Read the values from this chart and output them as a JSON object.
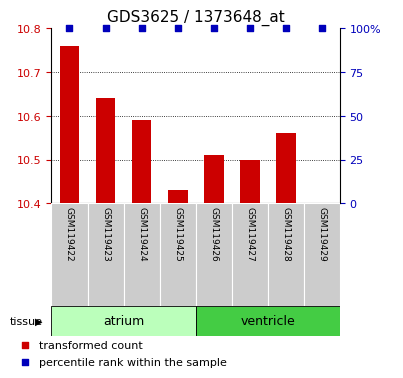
{
  "title": "GDS3625 / 1373648_at",
  "samples": [
    "GSM119422",
    "GSM119423",
    "GSM119424",
    "GSM119425",
    "GSM119426",
    "GSM119427",
    "GSM119428",
    "GSM119429"
  ],
  "red_values": [
    10.76,
    10.64,
    10.59,
    10.43,
    10.51,
    10.5,
    10.56,
    10.4
  ],
  "blue_pct": [
    100,
    100,
    100,
    100,
    100,
    100,
    100,
    100
  ],
  "ymin": 10.4,
  "ymax": 10.8,
  "yticks_left": [
    10.4,
    10.5,
    10.6,
    10.7,
    10.8
  ],
  "yticks_right": [
    0,
    25,
    50,
    75,
    100
  ],
  "ytick_right_labels": [
    "0",
    "25",
    "50",
    "75",
    "100%"
  ],
  "groups": [
    {
      "label": "atrium",
      "start": 0,
      "end": 4,
      "color": "#bbffbb"
    },
    {
      "label": "ventricle",
      "start": 4,
      "end": 8,
      "color": "#44cc44"
    }
  ],
  "bar_color": "#cc0000",
  "dot_color": "#0000bb",
  "left_tick_color": "#cc0000",
  "right_tick_color": "#0000bb",
  "grid_color": "#000000",
  "sample_box_color": "#cccccc",
  "title_fontsize": 11,
  "axis_fontsize": 8,
  "sample_fontsize": 6.5,
  "tissue_fontsize": 9,
  "legend_fontsize": 8,
  "bar_width": 0.55,
  "dot_size": 15
}
